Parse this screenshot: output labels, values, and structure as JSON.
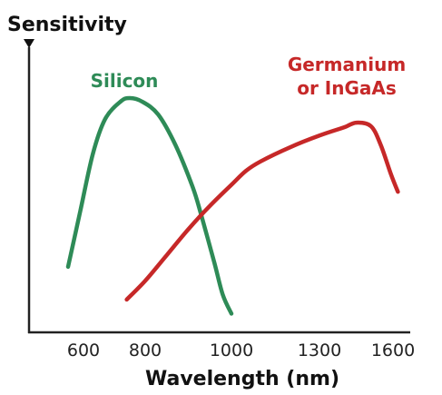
{
  "chart_data": {
    "type": "line",
    "title": "",
    "xlabel": "Wavelength (nm)",
    "ylabel": "Sensitivity",
    "x_ticks": [
      {
        "value": 600,
        "label": "600"
      },
      {
        "value": 800,
        "label": "800"
      },
      {
        "value": 1000,
        "label": "1000"
      },
      {
        "value": 1300,
        "label": "1300"
      },
      {
        "value": 1600,
        "label": "1600"
      }
    ],
    "ylim": [
      0,
      1
    ],
    "grid": false,
    "series": [
      {
        "name": "Silicon",
        "label_lines": [
          "Silicon"
        ],
        "color": "#2e8b57",
        "points": [
          [
            550,
            0.28
          ],
          [
            590,
            0.52
          ],
          [
            630,
            0.76
          ],
          [
            670,
            0.91
          ],
          [
            720,
            0.985
          ],
          [
            750,
            1.0
          ],
          [
            790,
            0.985
          ],
          [
            830,
            0.93
          ],
          [
            870,
            0.8
          ],
          [
            910,
            0.62
          ],
          [
            930,
            0.5
          ],
          [
            960,
            0.3
          ],
          [
            980,
            0.16
          ],
          [
            1000,
            0.08
          ]
        ]
      },
      {
        "name": "Germanium or InGaAs",
        "label_lines": [
          "Germanium",
          "or InGaAs"
        ],
        "color": "#c62828",
        "points": [
          [
            740,
            0.14
          ],
          [
            800,
            0.22
          ],
          [
            850,
            0.33
          ],
          [
            900,
            0.44
          ],
          [
            950,
            0.54
          ],
          [
            1000,
            0.63
          ],
          [
            1050,
            0.69
          ],
          [
            1100,
            0.73
          ],
          [
            1200,
            0.79
          ],
          [
            1300,
            0.84
          ],
          [
            1400,
            0.875
          ],
          [
            1450,
            0.895
          ],
          [
            1510,
            0.88
          ],
          [
            1550,
            0.8
          ],
          [
            1590,
            0.68
          ],
          [
            1620,
            0.6
          ]
        ]
      }
    ]
  }
}
